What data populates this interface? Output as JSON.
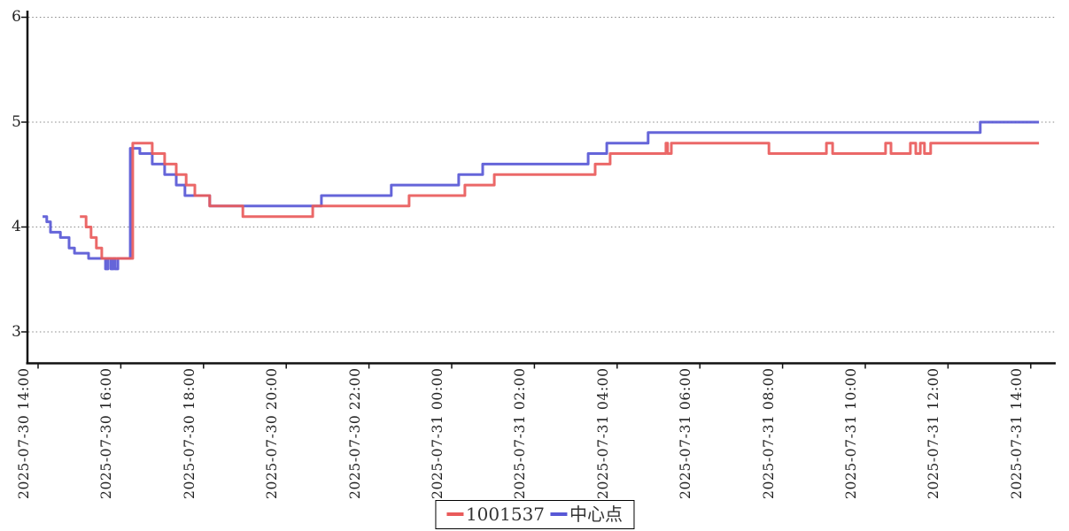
{
  "legend": {
    "items": [
      {
        "label": "1001537",
        "color": "#e95b5b"
      },
      {
        "label": "中心点",
        "color": "#5858d6"
      }
    ]
  },
  "axes": {
    "y_tick_labels": [
      "6",
      "5",
      "4",
      "3"
    ],
    "x_tick_labels": [
      "2025-07-30 14:00",
      "2025-07-30 16:00",
      "2025-07-30 18:00",
      "2025-07-30 20:00",
      "2025-07-30 22:00",
      "2025-07-31 00:00",
      "2025-07-31 02:00",
      "2025-07-31 04:00",
      "2025-07-31 06:00",
      "2025-07-31 08:00",
      "2025-07-31 10:00",
      "2025-07-31 12:00",
      "2025-07-31 14:00"
    ]
  },
  "chart_data": {
    "type": "line",
    "step": "after",
    "title": "",
    "xlabel": "",
    "ylabel": "",
    "x_unit": "hours since 2025-07-30 14:00",
    "xlim": [
      -0.3,
      24.6
    ],
    "ylim": [
      2.7,
      6.06
    ],
    "yticks": [
      3,
      4,
      5,
      6
    ],
    "x_tick_hours": [
      0,
      2,
      4,
      6,
      8,
      10,
      12,
      14,
      16,
      18,
      20,
      22,
      24
    ],
    "grid": "dotted-horizontal",
    "legend_position": "bottom-center",
    "colors": {
      "grid": "#888888",
      "axis": "#111111",
      "tick_text": "#222222"
    },
    "series": [
      {
        "name": "中心点",
        "color": "#5858d6",
        "points": [
          [
            0.11,
            4.1
          ],
          [
            0.21,
            4.05
          ],
          [
            0.3,
            3.95
          ],
          [
            0.54,
            3.9
          ],
          [
            0.75,
            3.8
          ],
          [
            0.88,
            3.75
          ],
          [
            1.22,
            3.7
          ],
          [
            1.63,
            3.6
          ],
          [
            1.69,
            3.7
          ],
          [
            1.76,
            3.6
          ],
          [
            1.82,
            3.7
          ],
          [
            1.86,
            3.6
          ],
          [
            1.93,
            3.7
          ],
          [
            2.23,
            4.75
          ],
          [
            2.46,
            4.7
          ],
          [
            2.76,
            4.6
          ],
          [
            3.06,
            4.5
          ],
          [
            3.34,
            4.4
          ],
          [
            3.55,
            4.3
          ],
          [
            4.15,
            4.2
          ],
          [
            6.85,
            4.3
          ],
          [
            8.54,
            4.4
          ],
          [
            10.17,
            4.5
          ],
          [
            10.75,
            4.6
          ],
          [
            13.3,
            4.7
          ],
          [
            13.75,
            4.8
          ],
          [
            14.75,
            4.9
          ],
          [
            22.78,
            5.0
          ],
          [
            24.2,
            5.0
          ]
        ]
      },
      {
        "name": "1001537",
        "color": "#e95b5b",
        "points": [
          [
            1.01,
            4.1
          ],
          [
            1.16,
            4.0
          ],
          [
            1.28,
            3.9
          ],
          [
            1.41,
            3.8
          ],
          [
            1.54,
            3.7
          ],
          [
            2.29,
            4.8
          ],
          [
            2.76,
            4.7
          ],
          [
            3.06,
            4.6
          ],
          [
            3.34,
            4.5
          ],
          [
            3.58,
            4.4
          ],
          [
            3.79,
            4.3
          ],
          [
            4.15,
            4.2
          ],
          [
            4.95,
            4.1
          ],
          [
            6.64,
            4.2
          ],
          [
            8.97,
            4.3
          ],
          [
            10.32,
            4.4
          ],
          [
            11.03,
            4.5
          ],
          [
            13.47,
            4.6
          ],
          [
            13.83,
            4.7
          ],
          [
            15.18,
            4.8
          ],
          [
            15.22,
            4.7
          ],
          [
            15.31,
            4.8
          ],
          [
            17.67,
            4.7
          ],
          [
            19.06,
            4.8
          ],
          [
            19.21,
            4.7
          ],
          [
            20.49,
            4.8
          ],
          [
            20.62,
            4.7
          ],
          [
            21.09,
            4.8
          ],
          [
            21.22,
            4.7
          ],
          [
            21.33,
            4.8
          ],
          [
            21.43,
            4.7
          ],
          [
            21.58,
            4.8
          ],
          [
            24.2,
            4.8
          ]
        ]
      }
    ]
  }
}
